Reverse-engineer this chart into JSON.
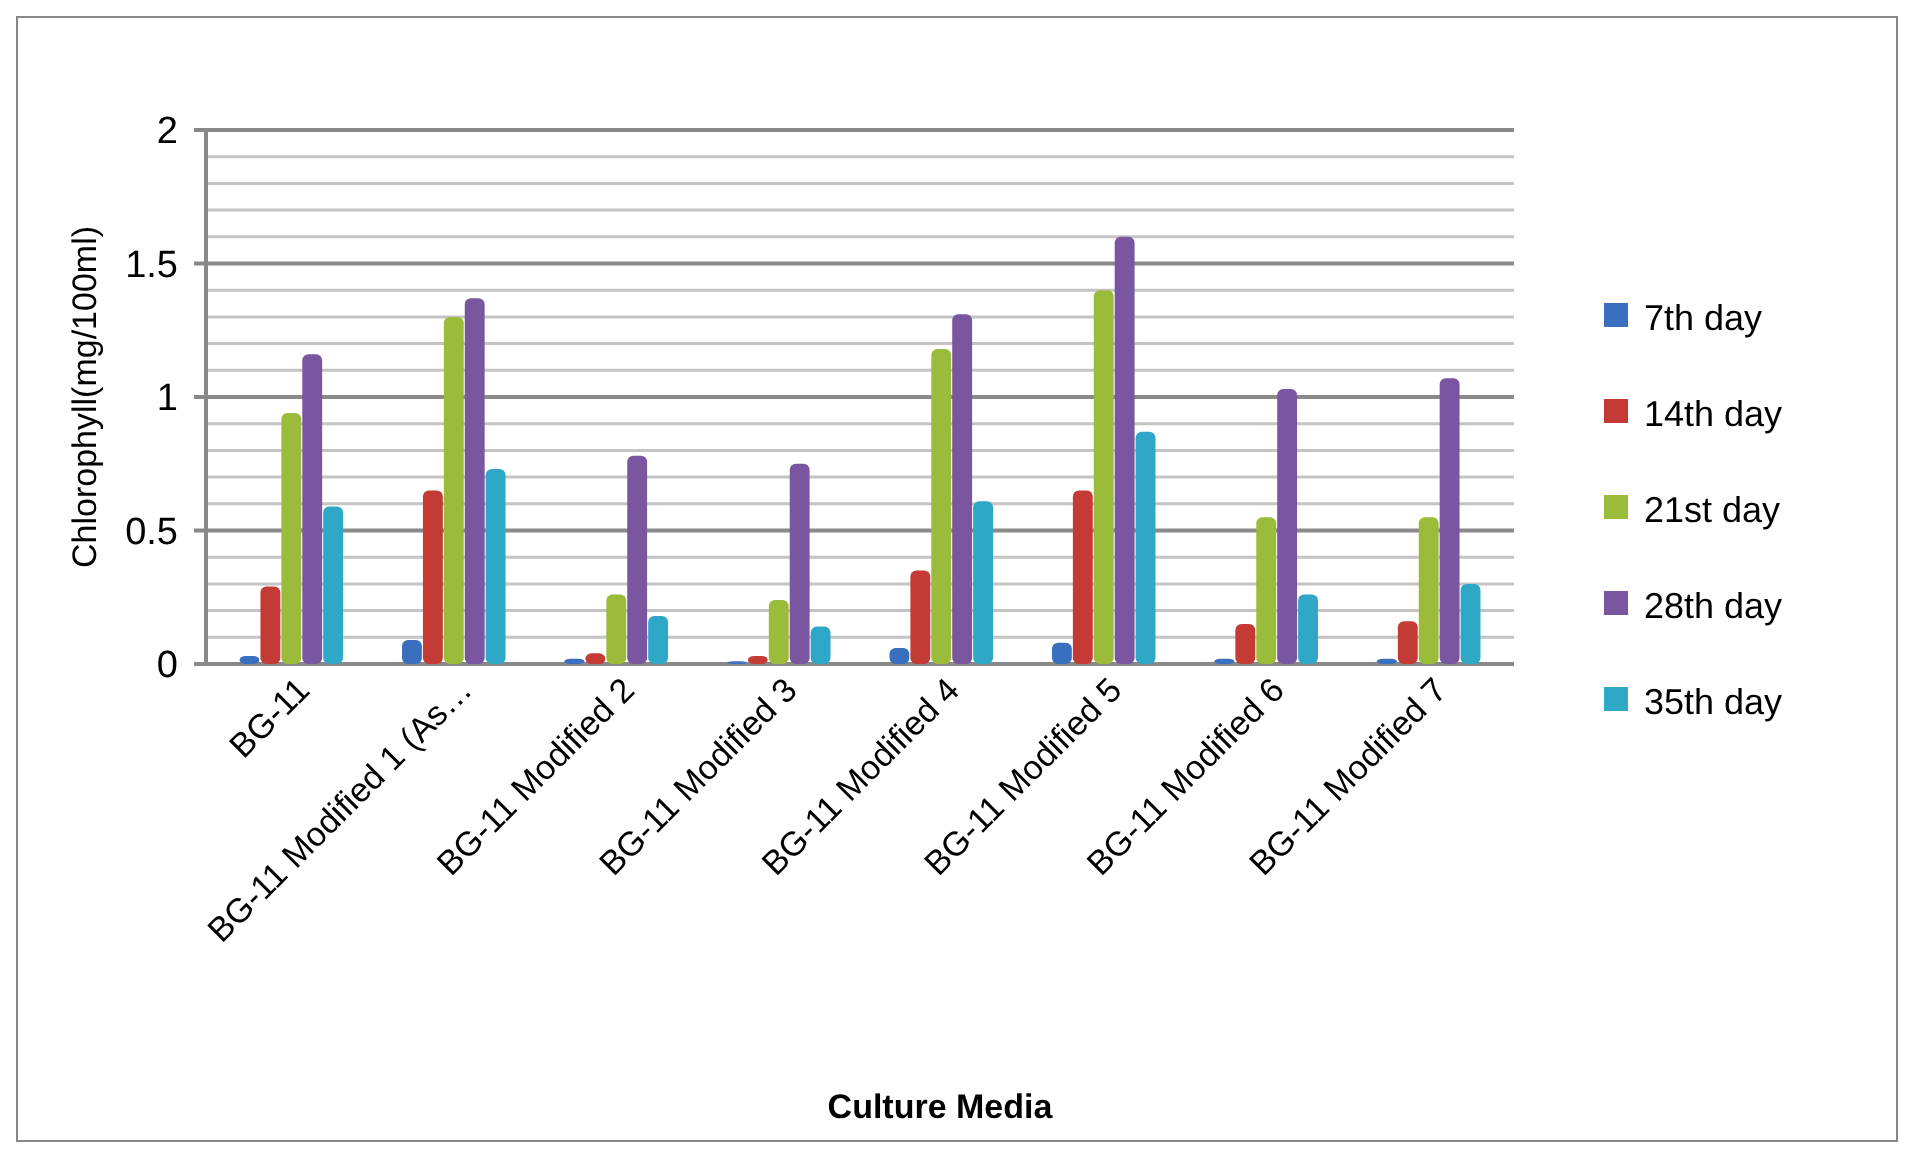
{
  "chart_data": {
    "type": "bar",
    "xlabel": "Culture Media",
    "ylabel": "Chlorophyll(mg/100ml)",
    "categories": [
      "BG-11",
      "BG-11 Modified 1 (As…",
      "BG-11 Modified 2",
      "BG-11 Modified 3",
      "BG-11 Modified 4",
      "BG-11 Modified 5",
      "BG-11 Modified 6",
      "BG-11 Modified 7"
    ],
    "series": [
      {
        "name": "7th day",
        "color": "#3a6fc0",
        "values": [
          0.03,
          0.09,
          0.02,
          0.01,
          0.06,
          0.08,
          0.02,
          0.02
        ]
      },
      {
        "name": "14th day",
        "color": "#c43a35",
        "values": [
          0.29,
          0.65,
          0.04,
          0.03,
          0.35,
          0.65,
          0.15,
          0.16
        ]
      },
      {
        "name": "21st day",
        "color": "#9bbb3b",
        "values": [
          0.94,
          1.3,
          0.26,
          0.24,
          1.18,
          1.4,
          0.55,
          0.55
        ]
      },
      {
        "name": "28th day",
        "color": "#7a55a0",
        "values": [
          1.16,
          1.37,
          0.78,
          0.75,
          1.31,
          1.6,
          1.03,
          1.07
        ]
      },
      {
        "name": "35th day",
        "color": "#2fa8c8",
        "values": [
          0.59,
          0.73,
          0.18,
          0.14,
          0.61,
          0.87,
          0.26,
          0.3
        ]
      }
    ],
    "ylim": [
      0,
      2
    ],
    "yticks": [
      0,
      {
        "value": 0.1,
        "label": null
      },
      {
        "value": 0.2,
        "label": null
      },
      {
        "value": 0.3,
        "label": null
      },
      {
        "value": 0.4,
        "label": null
      },
      {
        "value": 0.5,
        "label": "0.5"
      },
      {
        "value": 0.6,
        "label": null
      },
      {
        "value": 0.7,
        "label": null
      },
      {
        "value": 0.8,
        "label": null
      },
      {
        "value": 0.9,
        "label": null
      },
      1,
      {
        "value": 1.1,
        "label": null
      },
      {
        "value": 1.2,
        "label": null
      },
      {
        "value": 1.3,
        "label": null
      },
      {
        "value": 1.4,
        "label": null
      },
      1.5,
      {
        "value": 1.6,
        "label": null
      },
      {
        "value": 1.7,
        "label": null
      },
      {
        "value": 1.8,
        "label": null
      },
      {
        "value": 1.9,
        "label": null
      },
      2
    ],
    "grid": "y",
    "legend": "right"
  }
}
